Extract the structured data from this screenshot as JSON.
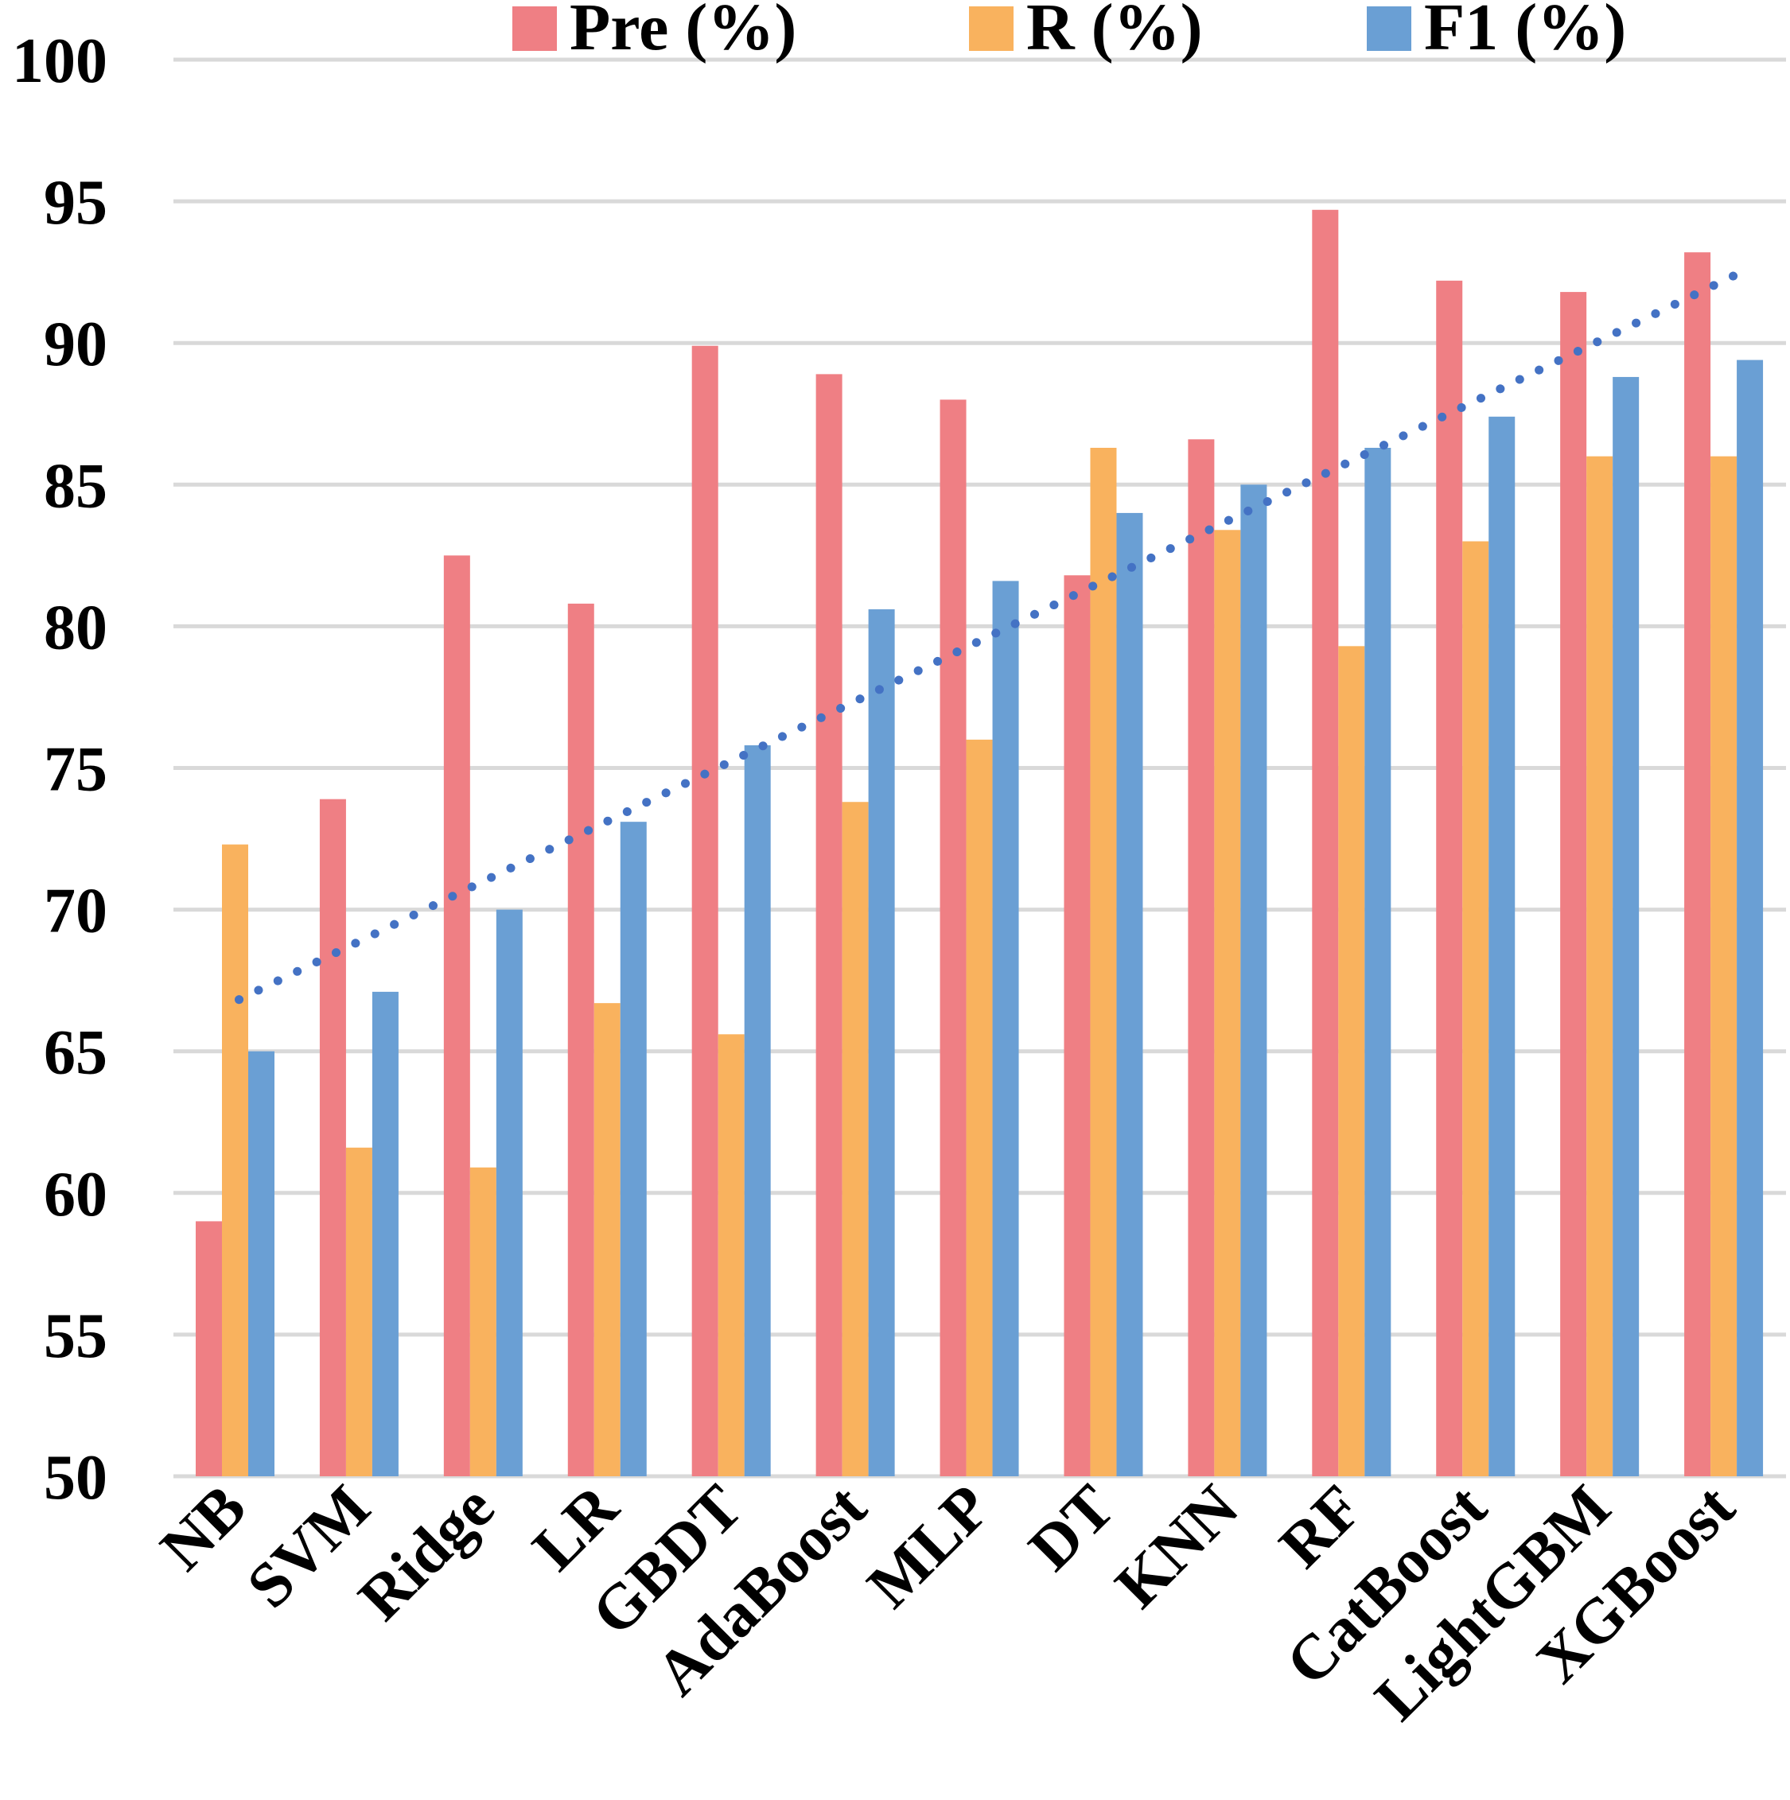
{
  "chart_data": {
    "type": "bar",
    "categories": [
      "NB",
      "SVM",
      "Ridge",
      "LR",
      "GBDT",
      "AdaBoost",
      "MLP",
      "DT",
      "KNN",
      "RF",
      "CatBoost",
      "LightGBM",
      "XGBoost"
    ],
    "series": [
      {
        "name": "Pre (%)",
        "color": "#ef7f84",
        "values": [
          59.0,
          73.9,
          82.5,
          80.8,
          89.9,
          88.9,
          88.0,
          81.8,
          86.6,
          94.7,
          92.2,
          91.8,
          93.2
        ]
      },
      {
        "name": "R (%)",
        "color": "#f9b25e",
        "values": [
          72.3,
          61.6,
          60.9,
          66.7,
          65.6,
          73.8,
          76.0,
          86.3,
          83.4,
          79.3,
          83.0,
          86.0,
          86.0
        ]
      },
      {
        "name": "F1 (%)",
        "color": "#6a9fd4",
        "values": [
          65.0,
          67.1,
          70.0,
          73.1,
          75.8,
          80.6,
          81.6,
          84.0,
          85.0,
          86.3,
          87.4,
          88.8,
          89.4
        ]
      }
    ],
    "trendline": {
      "series": "F1 (%)",
      "kind": "linear",
      "style": "dotted",
      "color": "#4472c4"
    },
    "ylim": [
      50,
      100
    ],
    "yticks": [
      "50",
      "55",
      "60",
      "65",
      "70",
      "75",
      "80",
      "85",
      "90",
      "95",
      "100"
    ],
    "grid": true,
    "legend": "top"
  }
}
